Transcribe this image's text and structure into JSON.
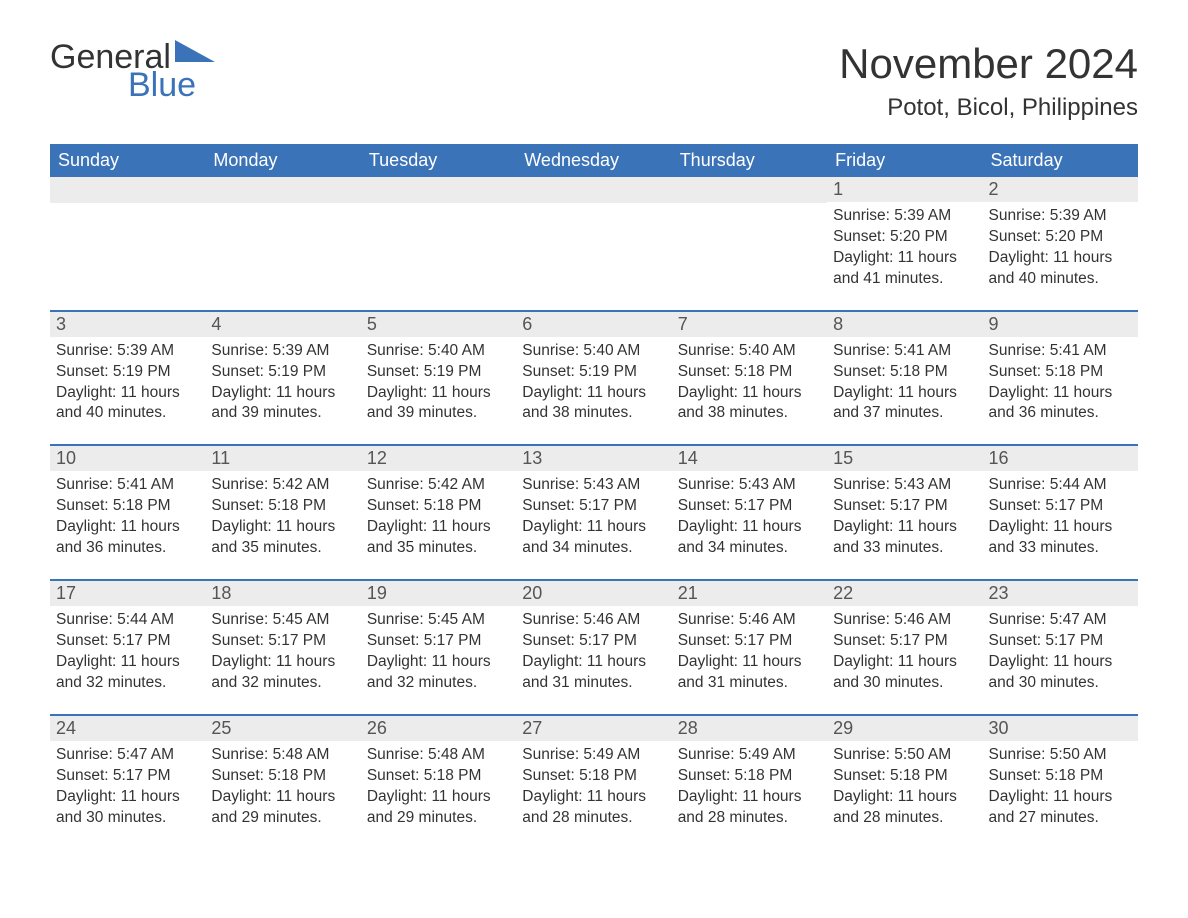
{
  "logo": {
    "word1": "General",
    "word2": "Blue"
  },
  "title": "November 2024",
  "location": "Potot, Bicol, Philippines",
  "colors": {
    "header_bg": "#3b73b9",
    "header_text": "#ffffff",
    "row_border": "#3b73b9",
    "daynum_bg": "#ececec",
    "text": "#333333",
    "logo_blue": "#3b73b9"
  },
  "typography": {
    "title_fontsize": 42,
    "location_fontsize": 24,
    "header_fontsize": 18,
    "daynum_fontsize": 18,
    "detail_fontsize": 15.5
  },
  "day_names": [
    "Sunday",
    "Monday",
    "Tuesday",
    "Wednesday",
    "Thursday",
    "Friday",
    "Saturday"
  ],
  "weeks": [
    [
      {
        "day": ""
      },
      {
        "day": ""
      },
      {
        "day": ""
      },
      {
        "day": ""
      },
      {
        "day": ""
      },
      {
        "day": "1",
        "sunrise": "Sunrise: 5:39 AM",
        "sunset": "Sunset: 5:20 PM",
        "daylight": "Daylight: 11 hours and 41 minutes."
      },
      {
        "day": "2",
        "sunrise": "Sunrise: 5:39 AM",
        "sunset": "Sunset: 5:20 PM",
        "daylight": "Daylight: 11 hours and 40 minutes."
      }
    ],
    [
      {
        "day": "3",
        "sunrise": "Sunrise: 5:39 AM",
        "sunset": "Sunset: 5:19 PM",
        "daylight": "Daylight: 11 hours and 40 minutes."
      },
      {
        "day": "4",
        "sunrise": "Sunrise: 5:39 AM",
        "sunset": "Sunset: 5:19 PM",
        "daylight": "Daylight: 11 hours and 39 minutes."
      },
      {
        "day": "5",
        "sunrise": "Sunrise: 5:40 AM",
        "sunset": "Sunset: 5:19 PM",
        "daylight": "Daylight: 11 hours and 39 minutes."
      },
      {
        "day": "6",
        "sunrise": "Sunrise: 5:40 AM",
        "sunset": "Sunset: 5:19 PM",
        "daylight": "Daylight: 11 hours and 38 minutes."
      },
      {
        "day": "7",
        "sunrise": "Sunrise: 5:40 AM",
        "sunset": "Sunset: 5:18 PM",
        "daylight": "Daylight: 11 hours and 38 minutes."
      },
      {
        "day": "8",
        "sunrise": "Sunrise: 5:41 AM",
        "sunset": "Sunset: 5:18 PM",
        "daylight": "Daylight: 11 hours and 37 minutes."
      },
      {
        "day": "9",
        "sunrise": "Sunrise: 5:41 AM",
        "sunset": "Sunset: 5:18 PM",
        "daylight": "Daylight: 11 hours and 36 minutes."
      }
    ],
    [
      {
        "day": "10",
        "sunrise": "Sunrise: 5:41 AM",
        "sunset": "Sunset: 5:18 PM",
        "daylight": "Daylight: 11 hours and 36 minutes."
      },
      {
        "day": "11",
        "sunrise": "Sunrise: 5:42 AM",
        "sunset": "Sunset: 5:18 PM",
        "daylight": "Daylight: 11 hours and 35 minutes."
      },
      {
        "day": "12",
        "sunrise": "Sunrise: 5:42 AM",
        "sunset": "Sunset: 5:18 PM",
        "daylight": "Daylight: 11 hours and 35 minutes."
      },
      {
        "day": "13",
        "sunrise": "Sunrise: 5:43 AM",
        "sunset": "Sunset: 5:17 PM",
        "daylight": "Daylight: 11 hours and 34 minutes."
      },
      {
        "day": "14",
        "sunrise": "Sunrise: 5:43 AM",
        "sunset": "Sunset: 5:17 PM",
        "daylight": "Daylight: 11 hours and 34 minutes."
      },
      {
        "day": "15",
        "sunrise": "Sunrise: 5:43 AM",
        "sunset": "Sunset: 5:17 PM",
        "daylight": "Daylight: 11 hours and 33 minutes."
      },
      {
        "day": "16",
        "sunrise": "Sunrise: 5:44 AM",
        "sunset": "Sunset: 5:17 PM",
        "daylight": "Daylight: 11 hours and 33 minutes."
      }
    ],
    [
      {
        "day": "17",
        "sunrise": "Sunrise: 5:44 AM",
        "sunset": "Sunset: 5:17 PM",
        "daylight": "Daylight: 11 hours and 32 minutes."
      },
      {
        "day": "18",
        "sunrise": "Sunrise: 5:45 AM",
        "sunset": "Sunset: 5:17 PM",
        "daylight": "Daylight: 11 hours and 32 minutes."
      },
      {
        "day": "19",
        "sunrise": "Sunrise: 5:45 AM",
        "sunset": "Sunset: 5:17 PM",
        "daylight": "Daylight: 11 hours and 32 minutes."
      },
      {
        "day": "20",
        "sunrise": "Sunrise: 5:46 AM",
        "sunset": "Sunset: 5:17 PM",
        "daylight": "Daylight: 11 hours and 31 minutes."
      },
      {
        "day": "21",
        "sunrise": "Sunrise: 5:46 AM",
        "sunset": "Sunset: 5:17 PM",
        "daylight": "Daylight: 11 hours and 31 minutes."
      },
      {
        "day": "22",
        "sunrise": "Sunrise: 5:46 AM",
        "sunset": "Sunset: 5:17 PM",
        "daylight": "Daylight: 11 hours and 30 minutes."
      },
      {
        "day": "23",
        "sunrise": "Sunrise: 5:47 AM",
        "sunset": "Sunset: 5:17 PM",
        "daylight": "Daylight: 11 hours and 30 minutes."
      }
    ],
    [
      {
        "day": "24",
        "sunrise": "Sunrise: 5:47 AM",
        "sunset": "Sunset: 5:17 PM",
        "daylight": "Daylight: 11 hours and 30 minutes."
      },
      {
        "day": "25",
        "sunrise": "Sunrise: 5:48 AM",
        "sunset": "Sunset: 5:18 PM",
        "daylight": "Daylight: 11 hours and 29 minutes."
      },
      {
        "day": "26",
        "sunrise": "Sunrise: 5:48 AM",
        "sunset": "Sunset: 5:18 PM",
        "daylight": "Daylight: 11 hours and 29 minutes."
      },
      {
        "day": "27",
        "sunrise": "Sunrise: 5:49 AM",
        "sunset": "Sunset: 5:18 PM",
        "daylight": "Daylight: 11 hours and 28 minutes."
      },
      {
        "day": "28",
        "sunrise": "Sunrise: 5:49 AM",
        "sunset": "Sunset: 5:18 PM",
        "daylight": "Daylight: 11 hours and 28 minutes."
      },
      {
        "day": "29",
        "sunrise": "Sunrise: 5:50 AM",
        "sunset": "Sunset: 5:18 PM",
        "daylight": "Daylight: 11 hours and 28 minutes."
      },
      {
        "day": "30",
        "sunrise": "Sunrise: 5:50 AM",
        "sunset": "Sunset: 5:18 PM",
        "daylight": "Daylight: 11 hours and 27 minutes."
      }
    ]
  ]
}
